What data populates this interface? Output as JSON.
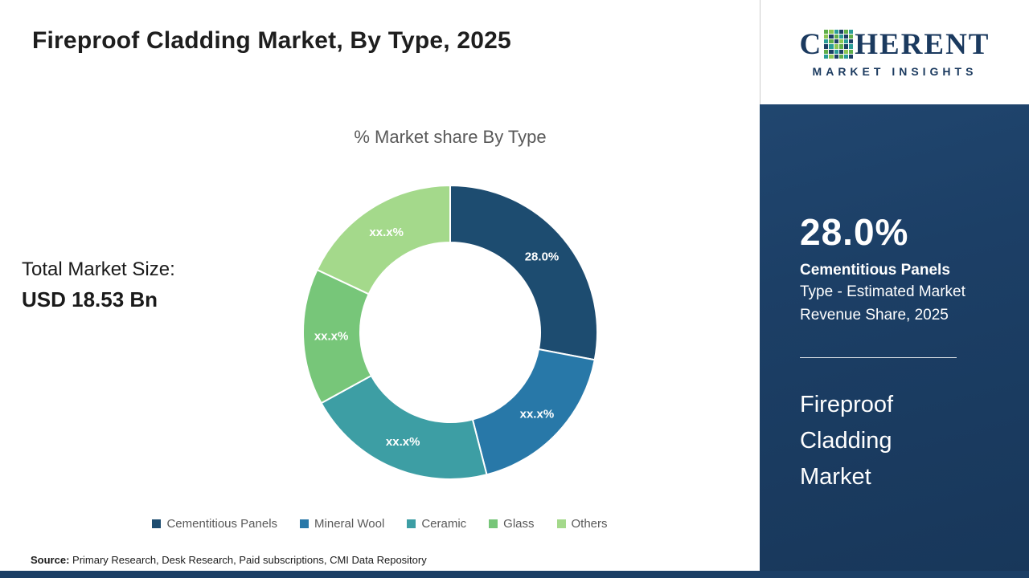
{
  "header": {
    "title": "Fireproof Cladding Market, By Type, 2025"
  },
  "logo": {
    "c": "C",
    "rest": "HERENT",
    "tagline": "MARKET INSIGHTS",
    "mosaic_icon": "mosaic-globe",
    "navy": "#1b3a5f"
  },
  "left_panel": {
    "total_label": "Total Market Size:",
    "total_value": "USD 18.53 Bn"
  },
  "source": {
    "label": "Source:",
    "text": " Primary Research, Desk Research, Paid subscriptions, CMI Data Repository"
  },
  "sidebar": {
    "highlight_value": "28.0%",
    "highlight_title": "Cementitious Panels",
    "highlight_desc": "Type - Estimated Market Revenue Share, 2025",
    "market_name": "Fireproof Cladding Market",
    "bg_color": "#1c3f66"
  },
  "chart_data": {
    "type": "pie",
    "subtype": "donut",
    "title": "% Market share By Type",
    "categories": [
      "Cementitious Panels",
      "Mineral Wool",
      "Ceramic",
      "Glass",
      "Others"
    ],
    "values": [
      28.0,
      18.0,
      21.0,
      15.0,
      18.0
    ],
    "labels": [
      "28.0%",
      "xx.x%",
      "xx.x%",
      "xx.x%",
      "xx.x%"
    ],
    "colors": [
      "#1d4c70",
      "#2878a8",
      "#3d9ea4",
      "#77c679",
      "#a4d98b"
    ],
    "start_angle_deg": 0,
    "direction": "clockwise",
    "legend_position": "bottom",
    "note": "Only the 28.0% segment value is shown in the image; remaining segment labels are masked as xx.x%, numeric values are visual estimates of arc sizes."
  }
}
